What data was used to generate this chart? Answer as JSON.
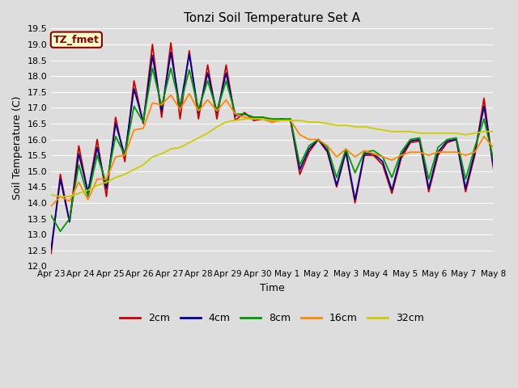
{
  "title": "Tonzi Soil Temperature Set A",
  "ylabel": "Soil Temperature (C)",
  "xlabel": "Time",
  "ylim": [
    12.0,
    19.5
  ],
  "yticks": [
    12.0,
    12.5,
    13.0,
    13.5,
    14.0,
    14.5,
    15.0,
    15.5,
    16.0,
    16.5,
    17.0,
    17.5,
    18.0,
    18.5,
    19.0,
    19.5
  ],
  "xtick_labels": [
    "Apr 23",
    "Apr 24",
    "Apr 25",
    "Apr 26",
    "Apr 27",
    "Apr 28",
    "Apr 29",
    "Apr 30",
    "May 1",
    "May 2",
    "May 3",
    "May 4",
    "May 5",
    "May 6",
    "May 7",
    "May 8"
  ],
  "line_colors": [
    "#cc0000",
    "#000099",
    "#009900",
    "#ff8800",
    "#cccc00"
  ],
  "line_labels": [
    "2cm",
    "4cm",
    "8cm",
    "16cm",
    "32cm"
  ],
  "annotation_text": "TZ_fmet",
  "annotation_bg": "#ffffcc",
  "annotation_border": "#880000",
  "bg_color": "#dddddd",
  "axes_bg": "#dddddd",
  "grid_color": "#ffffff",
  "2cm": [
    12.4,
    14.9,
    13.4,
    15.8,
    14.3,
    16.0,
    14.2,
    16.7,
    15.3,
    17.85,
    16.5,
    19.0,
    16.7,
    19.05,
    16.65,
    18.8,
    16.65,
    18.35,
    16.65,
    18.35,
    16.6,
    16.85,
    16.6,
    16.65,
    16.55,
    16.65,
    16.6,
    14.9,
    15.6,
    16.0,
    15.6,
    14.5,
    15.6,
    14.0,
    15.5,
    15.5,
    15.2,
    14.3,
    15.4,
    15.9,
    15.95,
    14.35,
    15.5,
    15.9,
    16.0,
    14.35,
    15.5,
    17.3,
    15.1
  ],
  "4cm": [
    12.55,
    14.75,
    13.4,
    15.55,
    14.35,
    15.75,
    14.45,
    16.5,
    15.5,
    17.6,
    16.55,
    18.65,
    16.9,
    18.75,
    17.0,
    18.7,
    16.85,
    18.1,
    16.85,
    18.1,
    16.75,
    16.8,
    16.7,
    16.7,
    16.6,
    16.65,
    16.6,
    15.05,
    15.7,
    16.0,
    15.65,
    14.55,
    15.65,
    14.1,
    15.55,
    15.55,
    15.3,
    14.4,
    15.5,
    15.95,
    16.0,
    14.45,
    15.6,
    15.95,
    16.0,
    14.45,
    15.6,
    17.05,
    15.2
  ],
  "8cm": [
    13.6,
    13.1,
    13.5,
    15.2,
    14.2,
    15.5,
    14.6,
    16.1,
    15.5,
    17.05,
    16.55,
    18.25,
    17.05,
    18.25,
    17.05,
    18.2,
    16.95,
    17.85,
    16.9,
    17.85,
    16.8,
    16.8,
    16.7,
    16.7,
    16.65,
    16.65,
    16.65,
    15.2,
    15.8,
    16.0,
    15.75,
    14.8,
    15.7,
    14.95,
    15.6,
    15.65,
    15.45,
    14.8,
    15.6,
    16.0,
    16.05,
    14.75,
    15.75,
    16.0,
    16.05,
    14.75,
    15.75,
    16.65,
    15.4
  ],
  "16cm": [
    13.9,
    14.2,
    14.05,
    14.65,
    14.1,
    14.75,
    14.75,
    15.45,
    15.5,
    16.3,
    16.35,
    17.15,
    17.1,
    17.4,
    16.95,
    17.45,
    16.9,
    17.25,
    16.9,
    17.25,
    16.8,
    16.7,
    16.65,
    16.65,
    16.55,
    16.6,
    16.6,
    16.15,
    16.0,
    16.0,
    15.8,
    15.45,
    15.7,
    15.45,
    15.65,
    15.55,
    15.45,
    15.35,
    15.5,
    15.6,
    15.6,
    15.5,
    15.6,
    15.6,
    15.6,
    15.5,
    15.6,
    16.1,
    15.75
  ],
  "32cm": [
    14.25,
    14.2,
    14.2,
    14.3,
    14.4,
    14.55,
    14.65,
    14.8,
    14.9,
    15.05,
    15.2,
    15.45,
    15.55,
    15.7,
    15.75,
    15.9,
    16.05,
    16.2,
    16.4,
    16.55,
    16.6,
    16.65,
    16.65,
    16.65,
    16.6,
    16.6,
    16.6,
    16.6,
    16.55,
    16.55,
    16.5,
    16.45,
    16.45,
    16.4,
    16.4,
    16.35,
    16.3,
    16.25,
    16.25,
    16.25,
    16.2,
    16.2,
    16.2,
    16.2,
    16.2,
    16.15,
    16.2,
    16.25,
    16.25
  ]
}
